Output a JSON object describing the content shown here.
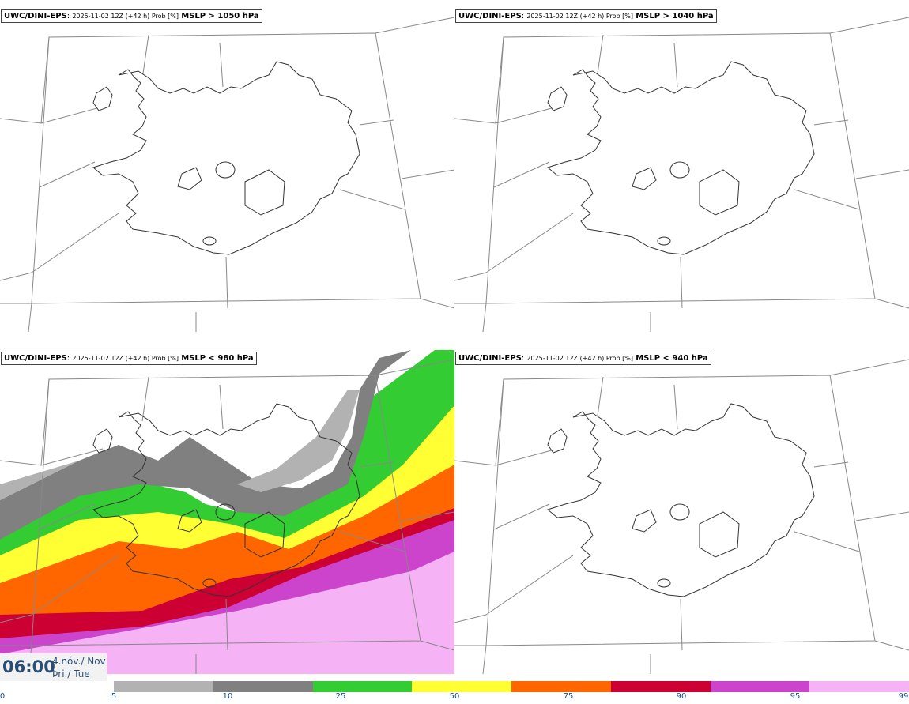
{
  "panels": [
    {
      "model": "UWC/DINI-EPS",
      "run": "2025-11-02 12Z (+42 h) Prob [%]",
      "threshold": "MSLP > 1050 hPa",
      "probability_bands": []
    },
    {
      "model": "UWC/DINI-EPS",
      "run": "2025-11-02 12Z (+42 h) Prob [%]",
      "threshold": "MSLP > 1040 hPa",
      "probability_bands": []
    },
    {
      "model": "UWC/DINI-EPS",
      "run": "2025-11-02 12Z (+42 h) Prob [%]",
      "threshold": "MSLP < 980 hPa",
      "probability_bands": [
        "5-10",
        "10-25",
        "25-50",
        "50-75",
        "75-90",
        "90-95",
        "95-99"
      ]
    },
    {
      "model": "UWC/DINI-EPS",
      "run": "2025-11-02 12Z (+42 h) Prob [%]",
      "threshold": "MSLP < 940 hPa",
      "probability_bands": []
    }
  ],
  "time": {
    "hour": "06:00",
    "date_line1": "4.nóv./ Nov",
    "date_line2": "Þri./ Tue"
  },
  "colorbar": {
    "ticks": [
      "0",
      "5",
      "10",
      "25",
      "50",
      "75",
      "90",
      "95",
      "99"
    ],
    "colors": [
      "#b2b2b2",
      "#808080",
      "#33cc33",
      "#ffff33",
      "#ff6600",
      "#cc0033",
      "#cc44cc",
      "#f5b2f5"
    ]
  },
  "colors": {
    "land_outline": "#333333",
    "graticule": "#888888"
  }
}
